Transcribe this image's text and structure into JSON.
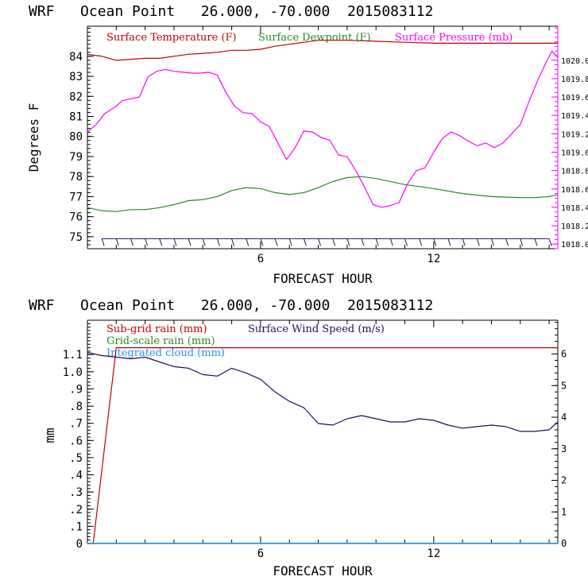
{
  "charts": [
    {
      "title": "WRF   Ocean Point   26.000, -70.000  2015083112",
      "xlabel": "FORECAST HOUR",
      "ylabel": "Degrees F",
      "legend": [
        {
          "label": "Surface Temperature (F)",
          "color": "#c00000"
        },
        {
          "label": "Surface Dewpoint (F)",
          "color": "#228b22"
        },
        {
          "label": "Surface Pressure (mb)",
          "color": "#ff00ff"
        }
      ]
    },
    {
      "title": "WRF   Ocean Point   26.000, -70.000  2015083112",
      "xlabel": "FORECAST HOUR",
      "ylabel": "mm",
      "legend": [
        {
          "label": "Sub-grid rain (mm)",
          "color": "#c00000"
        },
        {
          "label": "Surface Wind Speed (m/s)",
          "color": "#2a0a5a"
        },
        {
          "label": "Grid-scale rain (mm)",
          "color": "#228b22"
        },
        {
          "label": "Integrated cloud (mm)",
          "color": "#1e90ff"
        }
      ]
    }
  ],
  "chart_data": [
    {
      "type": "line",
      "title": "WRF   Ocean Point   26.000, -70.000  2015083112",
      "xlabel": "FORECAST HOUR",
      "ylabel": "Degrees F",
      "xlim": [
        0,
        16.3
      ],
      "xticks": [
        "6",
        "12"
      ],
      "xtick_values": [
        6,
        12
      ],
      "ylim": [
        74.4,
        85.5
      ],
      "yticks": [
        "75",
        "76",
        "77",
        "78",
        "79",
        "80",
        "81",
        "82",
        "83",
        "84"
      ],
      "ytick_values": [
        75,
        76,
        77,
        78,
        79,
        80,
        81,
        82,
        83,
        84
      ],
      "y2lim": [
        1017.95,
        1020.37
      ],
      "y2ticks": [
        "1018.0",
        "1018.2",
        "1018.4",
        "1018.6",
        "1018.8",
        "1019.0",
        "1019.2",
        "1019.4",
        "1019.6",
        "1019.8",
        "1020.0"
      ],
      "y2tick_values": [
        1018.0,
        1018.2,
        1018.4,
        1018.6,
        1018.8,
        1019.0,
        1019.2,
        1019.4,
        1019.6,
        1019.8,
        1020.0
      ],
      "series": [
        {
          "name": "Surface Temperature (F)",
          "color": "#c00000",
          "axis": "left",
          "x": [
            0,
            0.5,
            1,
            1.5,
            2,
            2.5,
            3,
            3.5,
            4,
            4.5,
            5,
            5.5,
            6,
            6.5,
            7,
            7.5,
            8,
            8.5,
            9,
            9.5,
            10,
            11,
            12,
            13,
            14,
            15,
            15.5,
            16,
            16.3
          ],
          "y": [
            84.1,
            84.0,
            83.8,
            83.85,
            83.9,
            83.9,
            84.0,
            84.1,
            84.15,
            84.2,
            84.3,
            84.3,
            84.35,
            84.5,
            84.6,
            84.7,
            84.8,
            84.8,
            84.8,
            84.78,
            84.75,
            84.7,
            84.65,
            84.65,
            84.65,
            84.65,
            84.65,
            84.65,
            84.65
          ]
        },
        {
          "name": "Surface Dewpoint (F)",
          "color": "#228b22",
          "axis": "left",
          "x": [
            0,
            0.5,
            1,
            1.5,
            2,
            2.5,
            3,
            3.5,
            4,
            4.5,
            5,
            5.5,
            6,
            6.5,
            7,
            7.5,
            8,
            8.5,
            9,
            9.5,
            10,
            11,
            12,
            13,
            14,
            15,
            15.5,
            16,
            16.3
          ],
          "y": [
            76.45,
            76.3,
            76.25,
            76.35,
            76.35,
            76.45,
            76.6,
            76.8,
            76.85,
            77.0,
            77.3,
            77.45,
            77.4,
            77.2,
            77.1,
            77.2,
            77.45,
            77.75,
            77.95,
            78.0,
            77.9,
            77.6,
            77.4,
            77.15,
            77.0,
            76.95,
            76.95,
            77.0,
            77.1
          ]
        },
        {
          "name": "Surface Pressure (mb)",
          "color": "#ff00ff",
          "axis": "right",
          "x": [
            0,
            0.3,
            0.6,
            1,
            1.2,
            1.5,
            1.8,
            2.1,
            2.4,
            2.7,
            3,
            3.3,
            3.6,
            3.9,
            4.2,
            4.5,
            4.8,
            5.1,
            5.4,
            5.7,
            6,
            6.3,
            6.6,
            6.9,
            7.2,
            7.5,
            7.8,
            8.1,
            8.4,
            8.7,
            9,
            9.3,
            9.6,
            9.9,
            10.2,
            10.5,
            10.8,
            11.1,
            11.4,
            11.7,
            12,
            12.3,
            12.6,
            12.9,
            13.2,
            13.5,
            13.8,
            14.1,
            14.4,
            14.7,
            15,
            15.3,
            15.6,
            15.9,
            16.1,
            16.3
          ],
          "y": [
            1019.22,
            1019.3,
            1019.42,
            1019.5,
            1019.56,
            1019.58,
            1019.6,
            1019.82,
            1019.88,
            1019.9,
            1019.88,
            1019.87,
            1019.86,
            1019.86,
            1019.87,
            1019.84,
            1019.65,
            1019.5,
            1019.43,
            1019.42,
            1019.33,
            1019.28,
            1019.1,
            1018.92,
            1019.05,
            1019.23,
            1019.22,
            1019.16,
            1019.13,
            1018.97,
            1018.95,
            1018.8,
            1018.62,
            1018.43,
            1018.4,
            1018.42,
            1018.45,
            1018.66,
            1018.8,
            1018.83,
            1019.0,
            1019.15,
            1019.22,
            1019.18,
            1019.12,
            1019.07,
            1019.1,
            1019.05,
            1019.1,
            1019.2,
            1019.3,
            1019.55,
            1019.78,
            1019.98,
            1020.1,
            1020.03
          ]
        }
      ],
      "wind_barbs": {
        "y": 74.9,
        "x": [
          0.5,
          1,
          1.5,
          2,
          2.5,
          3,
          3.5,
          4,
          4.5,
          5,
          5.5,
          6,
          6.5,
          7,
          7.5,
          8,
          8.5,
          9,
          9.5,
          10,
          10.5,
          11,
          11.5,
          12,
          12.5,
          13,
          13.5,
          14,
          14.5,
          15,
          15.5,
          16
        ],
        "color": "#2a0a5a"
      }
    },
    {
      "type": "line",
      "title": "WRF   Ocean Point   26.000, -70.000  2015083112",
      "xlabel": "FORECAST HOUR",
      "ylabel": "mm",
      "xlim": [
        0,
        16.3
      ],
      "xticks": [
        "6",
        "12"
      ],
      "xtick_values": [
        6,
        12
      ],
      "ylim": [
        0,
        1.3
      ],
      "yticks": [
        "0",
        ".1",
        ".2",
        ".3",
        ".4",
        ".5",
        ".6",
        ".7",
        ".8",
        ".9",
        "1.0",
        "1.1"
      ],
      "ytick_values": [
        0,
        0.1,
        0.2,
        0.3,
        0.4,
        0.5,
        0.6,
        0.7,
        0.8,
        0.9,
        1.0,
        1.1
      ],
      "y2lim": [
        0,
        7.07
      ],
      "y2ticks": [
        "0",
        "1",
        "2",
        "3",
        "4",
        "5",
        "6"
      ],
      "y2tick_values": [
        0,
        1,
        2,
        3,
        4,
        5,
        6
      ],
      "series": [
        {
          "name": "Sub-grid rain (mm)",
          "color": "#c00000",
          "axis": "left",
          "x": [
            0,
            0.2,
            1.0,
            16.3
          ],
          "y": [
            0,
            0,
            1.14,
            1.14
          ]
        },
        {
          "name": "Surface Wind Speed (m/s)",
          "color": "#2a0a5a",
          "axis": "right",
          "x": [
            0,
            0.5,
            1,
            1.5,
            2,
            2.5,
            3,
            3.5,
            4,
            4.5,
            5,
            5.5,
            6,
            6.5,
            7,
            7.5,
            8,
            8.5,
            9,
            9.5,
            10,
            10.5,
            11,
            11.5,
            12,
            12.5,
            13,
            13.5,
            14,
            14.5,
            15,
            15.5,
            16,
            16.3
          ],
          "y": [
            6.05,
            5.95,
            5.9,
            5.85,
            5.9,
            5.75,
            5.6,
            5.55,
            5.35,
            5.3,
            5.55,
            5.4,
            5.2,
            4.8,
            4.5,
            4.3,
            3.8,
            3.75,
            3.95,
            4.05,
            3.95,
            3.85,
            3.85,
            3.95,
            3.9,
            3.75,
            3.65,
            3.7,
            3.75,
            3.7,
            3.55,
            3.55,
            3.6,
            3.85
          ]
        },
        {
          "name": "Grid-scale rain (mm)",
          "color": "#228b22",
          "axis": "left",
          "x": [
            0,
            16.3
          ],
          "y": [
            0,
            0
          ]
        },
        {
          "name": "Integrated cloud (mm)",
          "color": "#1e90ff",
          "axis": "left",
          "x": [
            0,
            16.3
          ],
          "y": [
            0.002,
            0.002
          ]
        }
      ]
    }
  ]
}
